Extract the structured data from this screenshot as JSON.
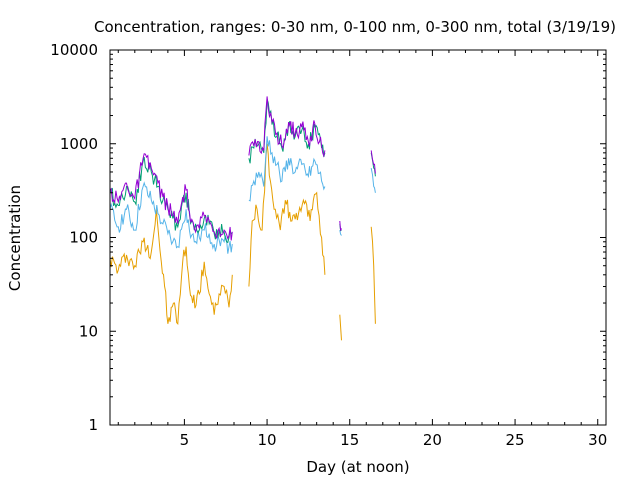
{
  "chart_data": {
    "type": "line",
    "title": "Concentration, ranges: 0-30 nm, 0-100 nm, 0-300 nm, total (3/19/19)",
    "xlabel": "Day (at noon)",
    "ylabel": "Concentration",
    "xlim": [
      0.5,
      30.5
    ],
    "ylim": [
      1,
      10000
    ],
    "yscale": "log",
    "grid": false,
    "legend": "none",
    "x_ticks": [
      5,
      10,
      15,
      20,
      25,
      30
    ],
    "y_ticks": [
      1,
      10,
      100,
      1000,
      10000
    ],
    "x_tick_labels": [
      "5",
      "10",
      "15",
      "20",
      "25",
      "30"
    ],
    "y_tick_labels": [
      "1",
      "10",
      "100",
      "1000",
      "10000"
    ],
    "series": [
      {
        "color": "#e69f00",
        "segments": [
          [
            [
              0.5,
              60
            ],
            [
              1.0,
              45
            ],
            [
              1.5,
              65
            ],
            [
              2.0,
              50
            ],
            [
              2.5,
              90
            ],
            [
              3.0,
              70
            ],
            [
              3.3,
              200
            ],
            [
              3.6,
              55
            ],
            [
              3.8,
              30
            ],
            [
              4.0,
              12
            ],
            [
              4.4,
              20
            ],
            [
              4.6,
              12
            ],
            [
              4.9,
              55
            ],
            [
              5.1,
              80
            ],
            [
              5.3,
              30
            ],
            [
              5.5,
              20
            ],
            [
              5.9,
              25
            ],
            [
              6.2,
              55
            ],
            [
              6.5,
              25
            ],
            [
              6.8,
              15
            ],
            [
              7.1,
              25
            ],
            [
              7.4,
              30
            ],
            [
              7.7,
              18
            ],
            [
              7.9,
              40
            ]
          ],
          [
            [
              8.9,
              30
            ],
            [
              9.1,
              150
            ],
            [
              9.4,
              200
            ],
            [
              9.7,
              120
            ],
            [
              10.0,
              1000
            ],
            [
              10.2,
              400
            ],
            [
              10.5,
              200
            ],
            [
              10.8,
              120
            ],
            [
              11.1,
              250
            ],
            [
              11.5,
              150
            ],
            [
              11.9,
              180
            ],
            [
              12.2,
              250
            ],
            [
              12.6,
              150
            ],
            [
              13.0,
              300
            ],
            [
              13.3,
              100
            ],
            [
              13.5,
              40
            ]
          ],
          [
            [
              14.4,
              15
            ],
            [
              14.5,
              8
            ]
          ],
          [
            [
              16.3,
              130
            ],
            [
              16.45,
              50
            ],
            [
              16.55,
              12
            ]
          ]
        ]
      },
      {
        "color": "#56b4e9",
        "segments": [
          [
            [
              0.5,
              200
            ],
            [
              1.0,
              130
            ],
            [
              1.5,
              200
            ],
            [
              2.0,
              120
            ],
            [
              2.5,
              350
            ],
            [
              3.0,
              250
            ],
            [
              3.4,
              180
            ],
            [
              3.7,
              140
            ],
            [
              4.0,
              110
            ],
            [
              4.3,
              90
            ],
            [
              4.6,
              80
            ],
            [
              4.9,
              140
            ],
            [
              5.1,
              200
            ],
            [
              5.3,
              120
            ],
            [
              5.6,
              90
            ],
            [
              5.9,
              100
            ],
            [
              6.2,
              120
            ],
            [
              6.5,
              110
            ],
            [
              6.8,
              85
            ],
            [
              7.1,
              95
            ],
            [
              7.4,
              90
            ],
            [
              7.7,
              80
            ],
            [
              7.9,
              85
            ]
          ],
          [
            [
              8.9,
              250
            ],
            [
              9.2,
              400
            ],
            [
              9.5,
              500
            ],
            [
              9.8,
              350
            ],
            [
              10.0,
              1200
            ],
            [
              10.3,
              800
            ],
            [
              10.6,
              600
            ],
            [
              10.9,
              400
            ],
            [
              11.3,
              700
            ],
            [
              11.7,
              500
            ],
            [
              12.1,
              600
            ],
            [
              12.5,
              450
            ],
            [
              12.9,
              650
            ],
            [
              13.3,
              400
            ],
            [
              13.5,
              350
            ]
          ],
          [
            [
              14.4,
              120
            ],
            [
              14.5,
              105
            ]
          ],
          [
            [
              16.3,
              550
            ],
            [
              16.45,
              350
            ],
            [
              16.55,
              300
            ]
          ]
        ]
      },
      {
        "color": "#009e73",
        "segments": [
          [
            [
              0.5,
              300
            ],
            [
              1.0,
              220
            ],
            [
              1.5,
              350
            ],
            [
              2.0,
              240
            ],
            [
              2.5,
              650
            ],
            [
              3.0,
              500
            ],
            [
              3.4,
              350
            ],
            [
              3.7,
              250
            ],
            [
              4.0,
              200
            ],
            [
              4.3,
              160
            ],
            [
              4.6,
              130
            ],
            [
              4.9,
              250
            ],
            [
              5.1,
              300
            ],
            [
              5.3,
              180
            ],
            [
              5.6,
              120
            ],
            [
              5.9,
              120
            ],
            [
              6.2,
              160
            ],
            [
              6.5,
              140
            ],
            [
              6.8,
              110
            ],
            [
              7.1,
              120
            ],
            [
              7.4,
              115
            ],
            [
              7.7,
              100
            ],
            [
              7.9,
              110
            ]
          ],
          [
            [
              8.9,
              700
            ],
            [
              9.2,
              900
            ],
            [
              9.5,
              1000
            ],
            [
              9.8,
              800
            ],
            [
              10.0,
              3000
            ],
            [
              10.3,
              1600
            ],
            [
              10.6,
              1200
            ],
            [
              10.9,
              900
            ],
            [
              11.3,
              1600
            ],
            [
              11.7,
              1200
            ],
            [
              12.1,
              1400
            ],
            [
              12.5,
              1000
            ],
            [
              12.9,
              1500
            ],
            [
              13.3,
              900
            ],
            [
              13.5,
              800
            ]
          ],
          [
            [
              14.4,
              140
            ],
            [
              14.5,
              120
            ]
          ],
          [
            [
              16.3,
              800
            ],
            [
              16.45,
              550
            ],
            [
              16.55,
              450
            ]
          ]
        ]
      },
      {
        "color": "#9400d3",
        "segments": [
          [
            [
              0.5,
              320
            ],
            [
              1.0,
              240
            ],
            [
              1.5,
              380
            ],
            [
              2.0,
              260
            ],
            [
              2.5,
              700
            ],
            [
              3.0,
              550
            ],
            [
              3.4,
              380
            ],
            [
              3.7,
              270
            ],
            [
              4.0,
              215
            ],
            [
              4.3,
              170
            ],
            [
              4.6,
              140
            ],
            [
              4.9,
              270
            ],
            [
              5.1,
              320
            ],
            [
              5.3,
              190
            ],
            [
              5.6,
              125
            ],
            [
              5.9,
              125
            ],
            [
              6.2,
              170
            ],
            [
              6.5,
              150
            ],
            [
              6.8,
              115
            ],
            [
              7.1,
              125
            ],
            [
              7.4,
              120
            ],
            [
              7.7,
              105
            ],
            [
              7.9,
              115
            ]
          ],
          [
            [
              8.9,
              750
            ],
            [
              9.2,
              950
            ],
            [
              9.5,
              1050
            ],
            [
              9.8,
              850
            ],
            [
              10.0,
              3200
            ],
            [
              10.3,
              1700
            ],
            [
              10.6,
              1300
            ],
            [
              10.9,
              950
            ],
            [
              11.3,
              1700
            ],
            [
              11.7,
              1300
            ],
            [
              12.1,
              1500
            ],
            [
              12.5,
              1050
            ],
            [
              12.9,
              1600
            ],
            [
              13.3,
              950
            ],
            [
              13.5,
              850
            ]
          ],
          [
            [
              14.4,
              150
            ],
            [
              14.5,
              125
            ]
          ],
          [
            [
              16.3,
              850
            ],
            [
              16.45,
              600
            ],
            [
              16.55,
              480
            ]
          ]
        ]
      }
    ]
  }
}
